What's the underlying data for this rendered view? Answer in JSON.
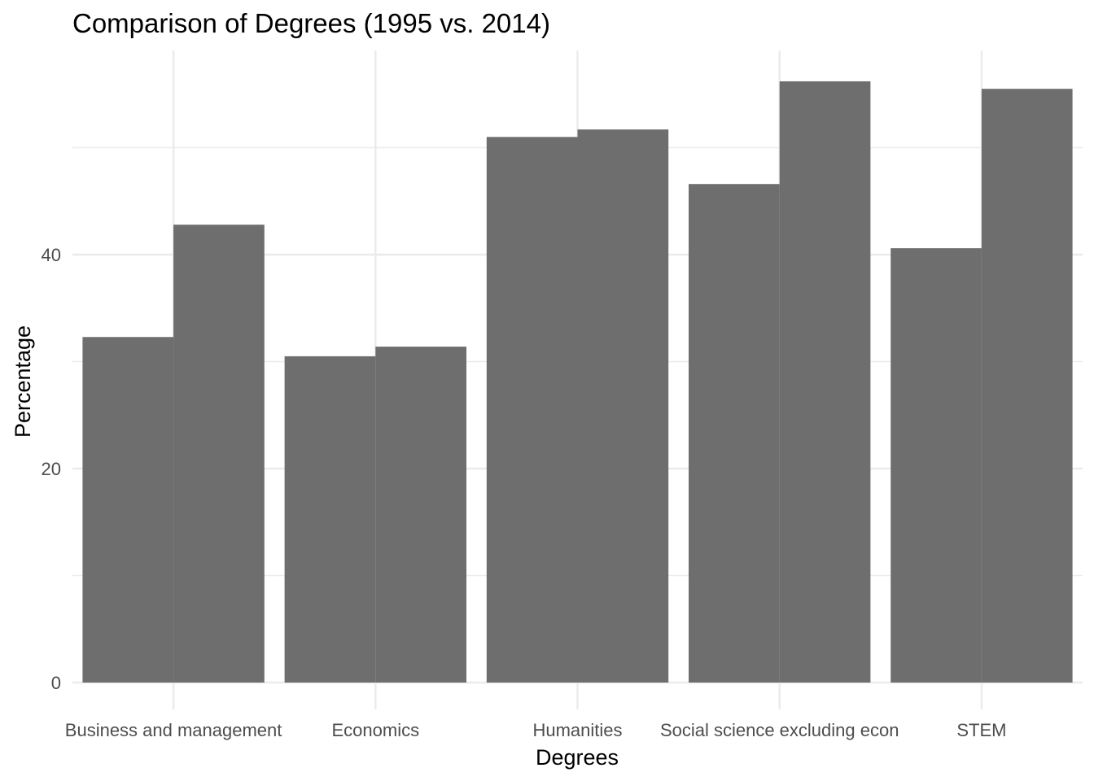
{
  "chart_data": {
    "type": "bar",
    "title": "Comparison of Degrees (1995 vs. 2014)",
    "xlabel": "Degrees",
    "ylabel": "Percentage",
    "categories": [
      "Business and management",
      "Economics",
      "Humanities",
      "Social science excluding econ",
      "STEM"
    ],
    "series": [
      {
        "values": [
          32.3,
          30.5,
          51.0,
          46.6,
          40.6
        ]
      },
      {
        "values": [
          42.8,
          31.4,
          51.7,
          56.2,
          55.5
        ]
      }
    ],
    "ylim": [
      0,
      59
    ],
    "yticks": [
      0,
      20,
      40
    ],
    "grid": true,
    "legend": "none",
    "colors": {
      "bar": "#6e6e6e",
      "grid": "#ebebeb"
    }
  }
}
